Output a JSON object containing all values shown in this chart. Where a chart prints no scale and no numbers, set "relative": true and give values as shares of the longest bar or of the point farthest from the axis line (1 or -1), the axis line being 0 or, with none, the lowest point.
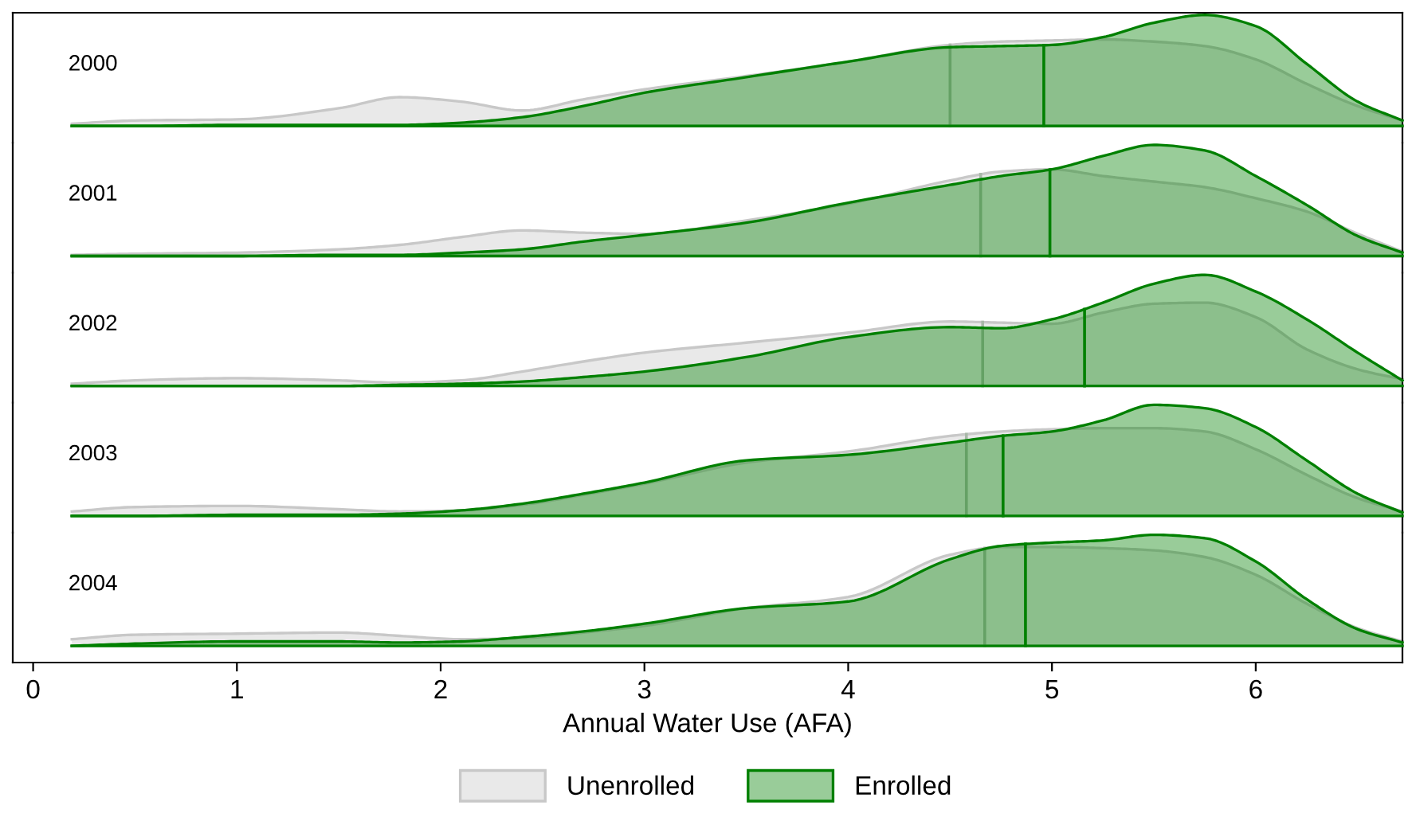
{
  "chart_data": [
    {
      "type": "area",
      "title": "2000",
      "relative": true,
      "xlim": [
        -0.1,
        6.72
      ],
      "tick_labels": false,
      "grid": false,
      "legend": "bottom",
      "x": [
        0.19,
        0.5,
        1,
        1.5,
        1.8,
        2.1,
        2.4,
        2.7,
        3,
        3.5,
        4,
        4.5,
        4.75,
        5,
        5.25,
        5.5,
        5.75,
        6,
        6.25,
        6.5,
        6.72
      ],
      "series": [
        {
          "name": "Unenrolled",
          "color": "#c8c8c8",
          "values": [
            0.02,
            0.05,
            0.06,
            0.16,
            0.26,
            0.22,
            0.14,
            0.24,
            0.33,
            0.45,
            0.58,
            0.73,
            0.76,
            0.77,
            0.78,
            0.76,
            0.72,
            0.6,
            0.38,
            0.18,
            0.05
          ]
        },
        {
          "name": "Enrolled",
          "color": "#008000",
          "values": [
            0,
            0,
            0.01,
            0.01,
            0.01,
            0.03,
            0.08,
            0.18,
            0.3,
            0.44,
            0.58,
            0.71,
            0.72,
            0.73,
            0.8,
            0.93,
            1.0,
            0.9,
            0.56,
            0.22,
            0.05
          ]
        }
      ],
      "ref_lines": [
        {
          "axis": "x",
          "value": 4.5,
          "color": "#a8b8a8"
        },
        {
          "axis": "x",
          "value": 4.96,
          "color": "#008000"
        }
      ]
    },
    {
      "type": "area",
      "title": "2001",
      "relative": true,
      "xlim": [
        -0.1,
        6.72
      ],
      "tick_labels": false,
      "grid": false,
      "legend": false,
      "x": [
        0.19,
        0.5,
        1,
        1.5,
        1.8,
        2.1,
        2.4,
        2.7,
        3,
        3.5,
        4,
        4.5,
        4.75,
        5,
        5.25,
        5.5,
        5.75,
        6,
        6.25,
        6.5,
        6.72
      ],
      "series": [
        {
          "color": "#c8c8c8",
          "values": [
            0.01,
            0.02,
            0.03,
            0.06,
            0.1,
            0.17,
            0.23,
            0.21,
            0.2,
            0.32,
            0.47,
            0.68,
            0.76,
            0.78,
            0.72,
            0.67,
            0.62,
            0.52,
            0.4,
            0.2,
            0.04
          ]
        },
        {
          "color": "#008000",
          "values": [
            0,
            0,
            0,
            0.01,
            0.01,
            0.03,
            0.06,
            0.13,
            0.19,
            0.3,
            0.48,
            0.64,
            0.72,
            0.78,
            0.9,
            1.0,
            0.95,
            0.72,
            0.46,
            0.18,
            0.03
          ]
        }
      ],
      "ref_lines": [
        {
          "axis": "x",
          "value": 4.65,
          "color": "#a8b8a8"
        },
        {
          "axis": "x",
          "value": 4.99,
          "color": "#008000"
        }
      ]
    },
    {
      "type": "area",
      "title": "2002",
      "relative": true,
      "xlim": [
        -0.1,
        6.72
      ],
      "tick_labels": false,
      "grid": false,
      "legend": false,
      "x": [
        0.19,
        0.5,
        1,
        1.5,
        1.8,
        2.1,
        2.4,
        2.7,
        3,
        3.5,
        4,
        4.5,
        4.75,
        5,
        5.25,
        5.5,
        5.75,
        6,
        6.25,
        6.5,
        6.72
      ],
      "series": [
        {
          "color": "#c8c8c8",
          "values": [
            0.02,
            0.05,
            0.07,
            0.05,
            0.03,
            0.05,
            0.13,
            0.22,
            0.3,
            0.39,
            0.48,
            0.58,
            0.57,
            0.56,
            0.66,
            0.74,
            0.75,
            0.62,
            0.33,
            0.15,
            0.06
          ]
        },
        {
          "color": "#008000",
          "values": [
            0,
            0,
            0,
            0,
            0.01,
            0.02,
            0.04,
            0.08,
            0.13,
            0.26,
            0.44,
            0.53,
            0.52,
            0.6,
            0.75,
            0.92,
            1.0,
            0.85,
            0.6,
            0.3,
            0.05
          ]
        }
      ],
      "ref_lines": [
        {
          "axis": "x",
          "value": 4.66,
          "color": "#a8b8a8"
        },
        {
          "axis": "x",
          "value": 5.16,
          "color": "#008000"
        }
      ]
    },
    {
      "type": "area",
      "title": "2003",
      "relative": true,
      "xlim": [
        -0.1,
        6.72
      ],
      "tick_labels": false,
      "grid": false,
      "legend": false,
      "x": [
        0.19,
        0.5,
        1,
        1.5,
        1.8,
        2.1,
        2.4,
        2.7,
        3,
        3.5,
        4,
        4.5,
        4.75,
        5,
        5.25,
        5.5,
        5.75,
        6,
        6.25,
        6.5,
        6.72
      ],
      "series": [
        {
          "color": "#c8c8c8",
          "values": [
            0.04,
            0.08,
            0.09,
            0.06,
            0.04,
            0.05,
            0.1,
            0.19,
            0.29,
            0.48,
            0.58,
            0.72,
            0.76,
            0.78,
            0.79,
            0.79,
            0.76,
            0.6,
            0.37,
            0.16,
            0.04
          ]
        },
        {
          "color": "#008000",
          "values": [
            0,
            0,
            0.01,
            0.01,
            0.02,
            0.05,
            0.11,
            0.2,
            0.3,
            0.5,
            0.55,
            0.66,
            0.72,
            0.76,
            0.86,
            1.0,
            0.97,
            0.8,
            0.5,
            0.2,
            0.03
          ]
        }
      ],
      "ref_lines": [
        {
          "axis": "x",
          "value": 4.58,
          "color": "#a8b8a8"
        },
        {
          "axis": "x",
          "value": 4.76,
          "color": "#008000"
        }
      ]
    },
    {
      "type": "area",
      "title": "2004",
      "relative": true,
      "xlim": [
        -0.1,
        6.72
      ],
      "xticks": [
        0,
        1,
        2,
        3,
        4,
        5,
        6
      ],
      "tick_labels": "x",
      "grid": false,
      "legend": false,
      "xlabel": "Annual Water Use (AFA)",
      "x": [
        0.19,
        0.5,
        1,
        1.5,
        1.8,
        2.1,
        2.4,
        2.7,
        3,
        3.5,
        4,
        4.5,
        4.75,
        5,
        5.25,
        5.5,
        5.75,
        6,
        6.25,
        6.5,
        6.72
      ],
      "series": [
        {
          "color": "#c8c8c8",
          "values": [
            0.06,
            0.1,
            0.11,
            0.12,
            0.09,
            0.06,
            0.07,
            0.12,
            0.18,
            0.34,
            0.44,
            0.82,
            0.89,
            0.89,
            0.88,
            0.86,
            0.8,
            0.64,
            0.38,
            0.16,
            0.04
          ]
        },
        {
          "color": "#008000",
          "values": [
            0,
            0.02,
            0.04,
            0.04,
            0.03,
            0.04,
            0.08,
            0.13,
            0.2,
            0.34,
            0.4,
            0.78,
            0.9,
            0.93,
            0.95,
            1.0,
            0.97,
            0.76,
            0.42,
            0.15,
            0.03
          ]
        }
      ],
      "ref_lines": [
        {
          "axis": "x",
          "value": 4.67,
          "color": "#a8b8a8"
        },
        {
          "axis": "x",
          "value": 4.87,
          "color": "#008000"
        }
      ]
    }
  ]
}
